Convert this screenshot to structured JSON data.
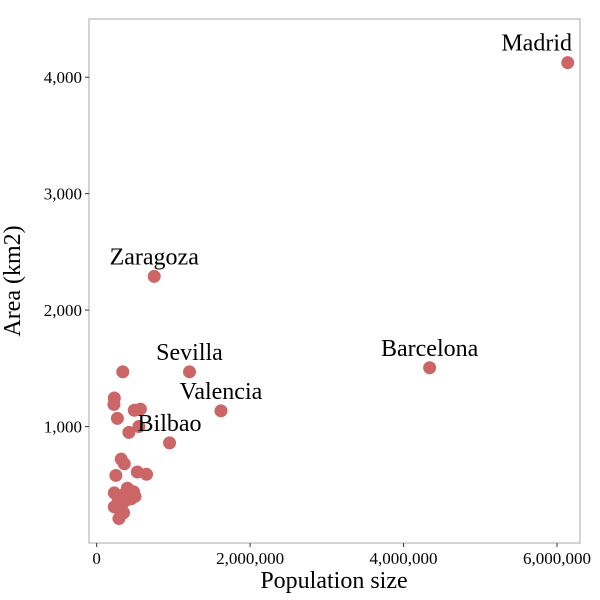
{
  "chart_data": {
    "type": "scatter",
    "xlabel": "Population size",
    "ylabel": "Area (km2)",
    "xlim": [
      -100000,
      6300000
    ],
    "ylim": [
      0,
      4500
    ],
    "x_ticks": [
      {
        "value": 0,
        "label": "0"
      },
      {
        "value": 2000000,
        "label": "2,000,000"
      },
      {
        "value": 4000000,
        "label": "4,000,000"
      },
      {
        "value": 6000000,
        "label": "6,000,000"
      }
    ],
    "y_ticks": [
      {
        "value": 1000,
        "label": "1,000"
      },
      {
        "value": 2000,
        "label": "2,000"
      },
      {
        "value": 3000,
        "label": "3,000"
      },
      {
        "value": 4000,
        "label": "4,000"
      }
    ],
    "grid": false,
    "point_color": "#cc6666",
    "points": [
      {
        "x": 6140000,
        "y": 4125,
        "label": "Madrid"
      },
      {
        "x": 4340000,
        "y": 1505,
        "label": "Barcelona"
      },
      {
        "x": 750000,
        "y": 2290,
        "label": "Zaragoza"
      },
      {
        "x": 1210000,
        "y": 1470,
        "label": "Sevilla"
      },
      {
        "x": 1620000,
        "y": 1135,
        "label": "Valencia"
      },
      {
        "x": 950000,
        "y": 860,
        "label": "Bilbao"
      },
      {
        "x": 340000,
        "y": 1470
      },
      {
        "x": 230000,
        "y": 1245
      },
      {
        "x": 225000,
        "y": 1190
      },
      {
        "x": 270000,
        "y": 1070
      },
      {
        "x": 490000,
        "y": 1140
      },
      {
        "x": 570000,
        "y": 1150
      },
      {
        "x": 420000,
        "y": 950
      },
      {
        "x": 550000,
        "y": 1000
      },
      {
        "x": 320000,
        "y": 720
      },
      {
        "x": 360000,
        "y": 680
      },
      {
        "x": 250000,
        "y": 580
      },
      {
        "x": 530000,
        "y": 610
      },
      {
        "x": 650000,
        "y": 590
      },
      {
        "x": 400000,
        "y": 470
      },
      {
        "x": 230000,
        "y": 430
      },
      {
        "x": 300000,
        "y": 400
      },
      {
        "x": 360000,
        "y": 420
      },
      {
        "x": 480000,
        "y": 440
      },
      {
        "x": 500000,
        "y": 400
      },
      {
        "x": 450000,
        "y": 380
      },
      {
        "x": 390000,
        "y": 370
      },
      {
        "x": 330000,
        "y": 330
      },
      {
        "x": 280000,
        "y": 360
      },
      {
        "x": 230000,
        "y": 310
      },
      {
        "x": 300000,
        "y": 290
      },
      {
        "x": 350000,
        "y": 260
      },
      {
        "x": 290000,
        "y": 210
      }
    ]
  }
}
